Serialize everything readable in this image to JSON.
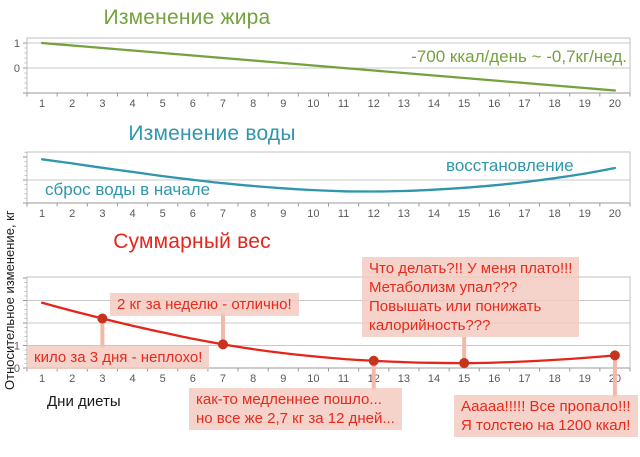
{
  "y_axis_label": "Относительное изменение, кг",
  "x_axis_label": "Дни диеты",
  "colors": {
    "fat_line": "#74a23d",
    "water_line": "#2f96ac",
    "weight_line": "#e5251b",
    "marker": "#c7331d",
    "callout_bg": "#f3c9be",
    "callout_text": "#e8291c",
    "stem": "#f2b9aa",
    "grid": "#c8c8c8",
    "border": "#c0c0c0",
    "axis": "#9a9a9a",
    "tick_text": "#595959"
  },
  "chart_data": [
    {
      "type": "line",
      "title": "Изменение жира",
      "color": "#74a23d",
      "annotation": "-700 ккал/день ~ -0,7кг/нед.",
      "categories": [
        "1",
        "2",
        "3",
        "4",
        "5",
        "6",
        "7",
        "8",
        "9",
        "10",
        "11",
        "12",
        "13",
        "14",
        "15",
        "16",
        "17",
        "18",
        "19",
        "20"
      ],
      "values": [
        1.0,
        0.9,
        0.8,
        0.7,
        0.6,
        0.5,
        0.4,
        0.3,
        0.2,
        0.1,
        0.0,
        -0.1,
        -0.2,
        -0.3,
        -0.4,
        -0.5,
        -0.6,
        -0.7,
        -0.8,
        -0.9
      ],
      "yticks": [
        {
          "v": 1,
          "label": "1"
        },
        {
          "v": 0,
          "label": "0"
        }
      ],
      "gridlines": [
        1,
        0
      ],
      "ylim": [
        -1,
        1.15
      ],
      "xlabel": "",
      "ylabel": "",
      "legend": "none",
      "grid": "horizontal"
    },
    {
      "type": "line",
      "title": "Изменение воды",
      "color": "#2f96ac",
      "annotations": [
        "сброс воды в начале",
        "восстановление"
      ],
      "categories": [
        "1",
        "2",
        "3",
        "4",
        "5",
        "6",
        "7",
        "8",
        "9",
        "10",
        "11",
        "12",
        "13",
        "14",
        "15",
        "16",
        "17",
        "18",
        "19",
        "20"
      ],
      "values": [
        1.9,
        1.72,
        1.53,
        1.35,
        1.17,
        1.01,
        0.86,
        0.74,
        0.64,
        0.56,
        0.51,
        0.5,
        0.52,
        0.58,
        0.66,
        0.77,
        0.91,
        1.08,
        1.28,
        1.52
      ],
      "yticks": [],
      "gridlines": [
        1
      ],
      "ylim": [
        0,
        2.21
      ],
      "xlabel": "",
      "ylabel": "",
      "legend": "none",
      "grid": "horizontal"
    },
    {
      "type": "line",
      "title": "Суммарный вес",
      "color": "#e5251b",
      "categories": [
        "1",
        "2",
        "3",
        "4",
        "5",
        "6",
        "7",
        "8",
        "9",
        "10",
        "11",
        "12",
        "13",
        "14",
        "15",
        "16",
        "17",
        "18",
        "19",
        "20"
      ],
      "values": [
        2.9,
        2.54,
        2.2,
        1.88,
        1.58,
        1.3,
        1.05,
        0.84,
        0.66,
        0.52,
        0.4,
        0.32,
        0.26,
        0.23,
        0.22,
        0.24,
        0.29,
        0.36,
        0.45,
        0.56
      ],
      "markers": [
        3,
        7,
        12,
        15,
        20
      ],
      "yticks": [
        {
          "v": 1,
          "label": "1"
        },
        {
          "v": 0,
          "label": "0"
        }
      ],
      "gridlines": [
        3,
        2,
        1
      ],
      "ylim": [
        0,
        4.04
      ],
      "callouts": [
        {
          "text": "2 кг за неделю - отлично!"
        },
        {
          "text": "кило за 3 дня - неплохо!"
        },
        {
          "text": "Что делать?!! У меня плато!!!\nМетаболизм упал???\nПовышать или понижать\nкалорийность???"
        },
        {
          "text": "как-то медленнее пошло...\nно все же 2,7 кг за 12 дней..."
        },
        {
          "text": "Ааааа!!!!! Все пропало!!!\nЯ толстею на 1200 ккал!"
        }
      ],
      "xlabel": "Дни диеты",
      "ylabel": "Относительное изменение, кг",
      "legend": "none",
      "grid": "horizontal"
    }
  ]
}
